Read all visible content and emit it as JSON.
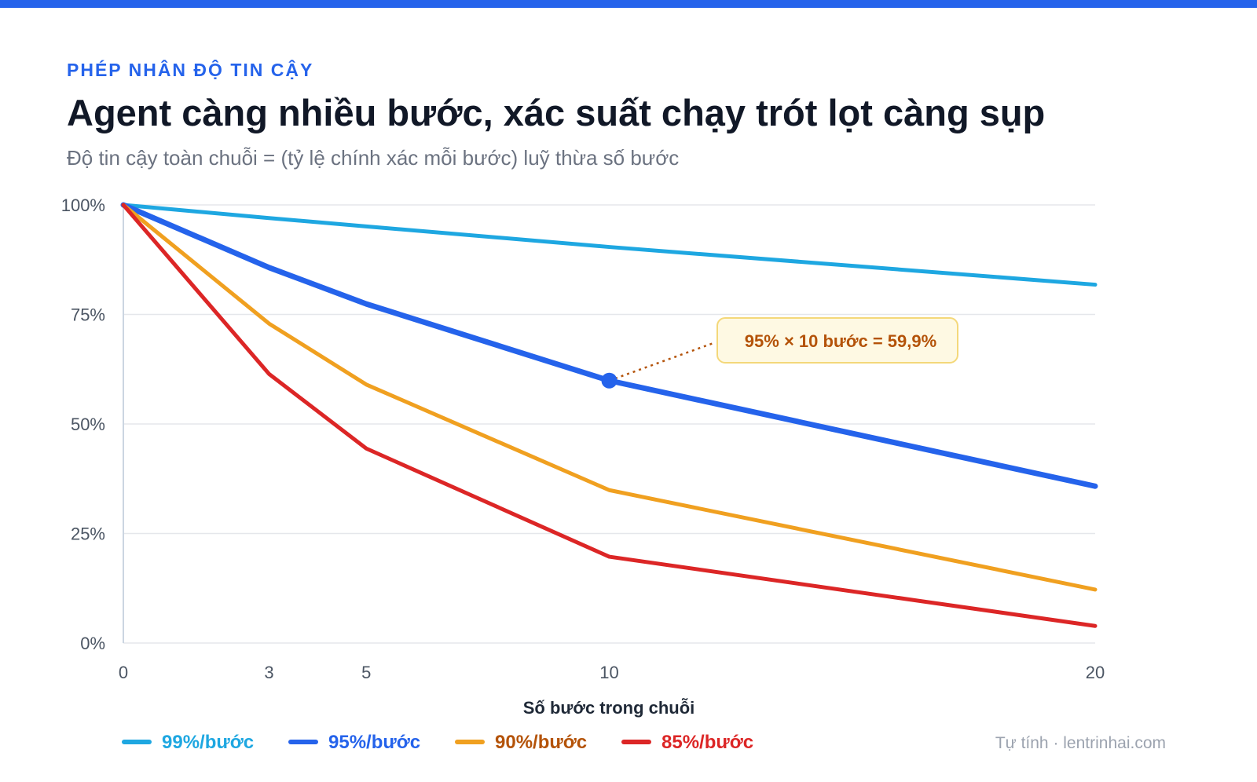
{
  "header": {
    "eyebrow": "PHÉP NHÂN ĐỘ TIN CẬY",
    "title": "Agent càng nhiều bước, xác suất chạy trót lọt càng sụp",
    "subtitle": "Độ tin cậy toàn chuỗi = (tỷ lệ chính xác mỗi bước) luỹ thừa số bước"
  },
  "source": "Tự tính · lentrinhai.com",
  "chart_data": {
    "type": "line",
    "title": "Agent càng nhiều bước, xác suất chạy trót lọt càng sụp",
    "subtitle": "Độ tin cậy toàn chuỗi = (tỷ lệ chính xác mỗi bước) luỹ thừa số bước",
    "xlabel": "Số bước trong chuỗi",
    "ylabel": "",
    "x": [
      0,
      3,
      5,
      10,
      20
    ],
    "x_ticks": [
      "0",
      "3",
      "5",
      "10",
      "20"
    ],
    "xlim": [
      0,
      20
    ],
    "ylim": [
      0,
      100
    ],
    "y_ticks": [
      0,
      25,
      50,
      75,
      100
    ],
    "y_tick_labels": [
      "0%",
      "25%",
      "50%",
      "75%",
      "100%"
    ],
    "grid": "horizontal",
    "legend_position": "bottom-left",
    "series": [
      {
        "name": "99%/bước",
        "color": "#1ea7e1",
        "label_color": "#1ea7e1",
        "values": [
          100,
          97.0,
          95.1,
          90.4,
          81.8
        ]
      },
      {
        "name": "95%/bước",
        "color": "#2563eb",
        "label_color": "#2563eb",
        "values": [
          100,
          85.7,
          77.4,
          59.9,
          35.8
        ]
      },
      {
        "name": "90%/bước",
        "color": "#f0a020",
        "label_color": "#b45309",
        "values": [
          100,
          72.9,
          59.0,
          34.9,
          12.2
        ]
      },
      {
        "name": "85%/bước",
        "color": "#dc2626",
        "label_color": "#dc2626",
        "values": [
          100,
          61.4,
          44.4,
          19.7,
          3.9
        ]
      }
    ],
    "annotation": {
      "text": "95% × 10 bước = 59,9%",
      "x": 10,
      "y": 59.9,
      "series": "95%/bước"
    }
  }
}
